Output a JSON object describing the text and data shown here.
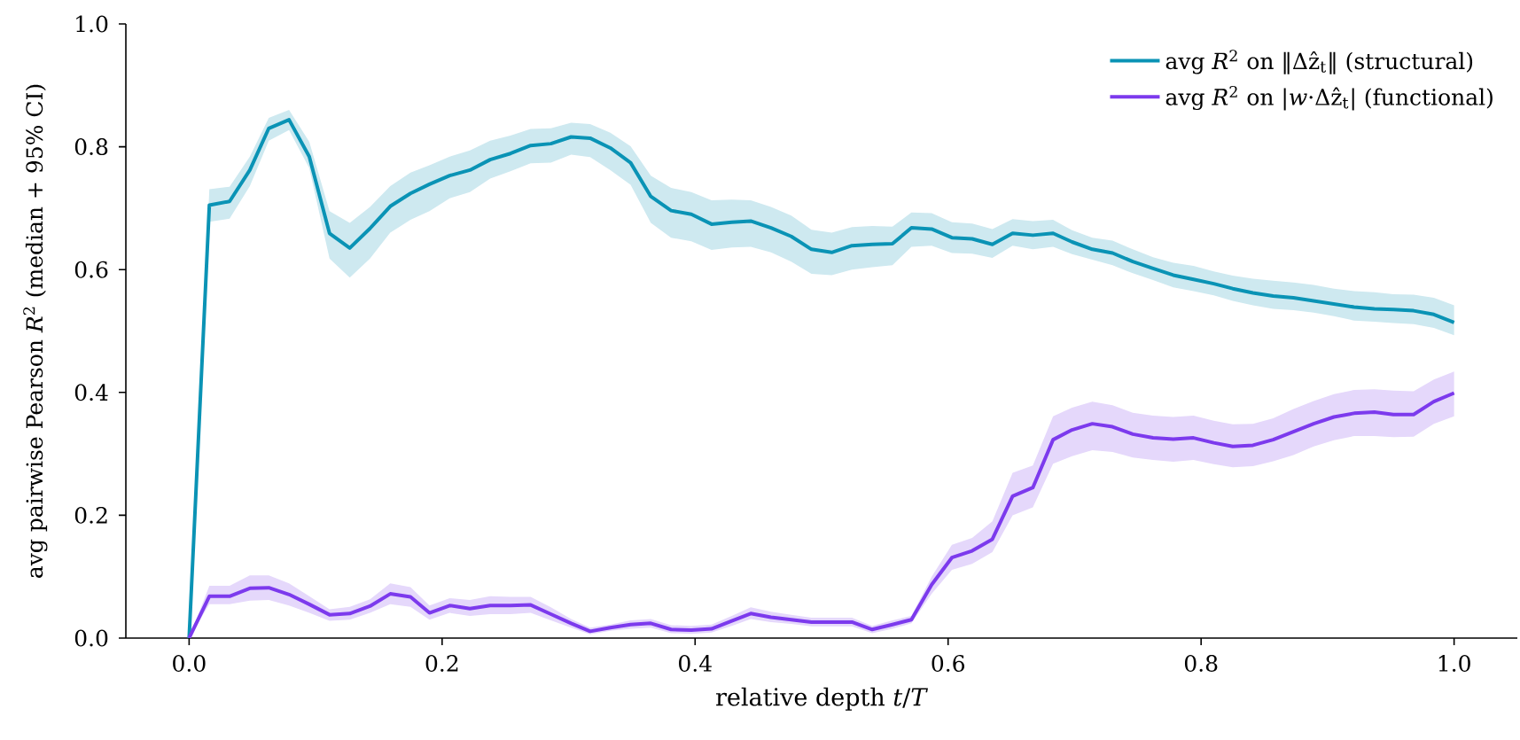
{
  "chart_data": {
    "type": "line",
    "xlabel": "relative depth *t*/*T*",
    "ylabel": "avg pairwise Pearson *R*$^{2}$ (median + 95% CI)",
    "legend": "top right",
    "xlim": [
      -0.05,
      1.05
    ],
    "ylim": [
      0,
      1
    ],
    "xticks": [
      {
        "value": 0,
        "label": "0.0"
      },
      0.2,
      0.4,
      0.6,
      0.8,
      {
        "value": 1,
        "label": "1.0"
      }
    ],
    "yticks": [
      {
        "value": 0,
        "label": "0.0"
      },
      0.2,
      0.4,
      0.6,
      0.8,
      {
        "value": 1,
        "label": "1.0"
      }
    ],
    "x": [
      0,
      0.016,
      0.032,
      0.048,
      0.063,
      0.079,
      0.095,
      0.111,
      0.127,
      0.143,
      0.159,
      0.175,
      0.19,
      0.206,
      0.222,
      0.238,
      0.254,
      0.27,
      0.286,
      0.302,
      0.317,
      0.333,
      0.349,
      0.365,
      0.381,
      0.397,
      0.413,
      0.429,
      0.444,
      0.46,
      0.476,
      0.492,
      0.508,
      0.524,
      0.54,
      0.556,
      0.571,
      0.587,
      0.603,
      0.619,
      0.635,
      0.651,
      0.667,
      0.683,
      0.698,
      0.714,
      0.73,
      0.746,
      0.762,
      0.778,
      0.794,
      0.81,
      0.825,
      0.841,
      0.857,
      0.873,
      0.889,
      0.905,
      0.921,
      0.937,
      0.952,
      0.968,
      0.984,
      1
    ],
    "series": [
      {
        "name": "avg *R*$^{2}$ on ‖Δẑ$_{t}$‖ (structural)",
        "color": "#0a93b5",
        "values": [
          0,
          0.705,
          0.711,
          0.762,
          0.83,
          0.844,
          0.784,
          0.659,
          0.635,
          0.667,
          0.703,
          0.724,
          0.739,
          0.753,
          0.762,
          0.779,
          0.789,
          0.802,
          0.805,
          0.816,
          0.814,
          0.798,
          0.774,
          0.719,
          0.696,
          0.69,
          0.674,
          0.677,
          0.679,
          0.668,
          0.654,
          0.633,
          0.628,
          0.639,
          0.641,
          0.642,
          0.668,
          0.666,
          0.652,
          0.65,
          0.641,
          0.659,
          0.656,
          0.659,
          0.645,
          0.633,
          0.627,
          0.613,
          0.602,
          0.591,
          0.584,
          0.577,
          0.569,
          0.562,
          0.557,
          0.554,
          0.549,
          0.544,
          0.539,
          0.536,
          0.535,
          0.533,
          0.527,
          0.514
        ],
        "upper": [
          0,
          0.731,
          0.735,
          0.784,
          0.847,
          0.86,
          0.808,
          0.695,
          0.676,
          0.702,
          0.736,
          0.758,
          0.77,
          0.784,
          0.794,
          0.81,
          0.818,
          0.829,
          0.83,
          0.839,
          0.837,
          0.823,
          0.801,
          0.753,
          0.733,
          0.726,
          0.713,
          0.714,
          0.713,
          0.702,
          0.688,
          0.665,
          0.66,
          0.669,
          0.671,
          0.67,
          0.693,
          0.692,
          0.677,
          0.675,
          0.666,
          0.682,
          0.679,
          0.681,
          0.664,
          0.652,
          0.647,
          0.633,
          0.62,
          0.611,
          0.606,
          0.597,
          0.59,
          0.585,
          0.582,
          0.579,
          0.575,
          0.569,
          0.565,
          0.563,
          0.56,
          0.559,
          0.554,
          0.542
        ],
        "lower": [
          0,
          0.678,
          0.683,
          0.736,
          0.81,
          0.827,
          0.765,
          0.618,
          0.587,
          0.618,
          0.66,
          0.681,
          0.695,
          0.716,
          0.726,
          0.748,
          0.76,
          0.773,
          0.774,
          0.787,
          0.783,
          0.762,
          0.738,
          0.676,
          0.652,
          0.646,
          0.632,
          0.636,
          0.637,
          0.628,
          0.613,
          0.593,
          0.591,
          0.6,
          0.604,
          0.607,
          0.637,
          0.639,
          0.627,
          0.626,
          0.619,
          0.639,
          0.633,
          0.637,
          0.625,
          0.616,
          0.607,
          0.594,
          0.583,
          0.571,
          0.565,
          0.558,
          0.549,
          0.542,
          0.536,
          0.534,
          0.53,
          0.524,
          0.517,
          0.515,
          0.513,
          0.511,
          0.505,
          0.493
        ]
      },
      {
        "name": "avg *R*$^{2}$ on |*w*·Δẑ$_{t}$| (functional)",
        "color": "#7c3aed",
        "values": [
          0,
          0.068,
          0.068,
          0.081,
          0.082,
          0.071,
          0.055,
          0.038,
          0.04,
          0.052,
          0.072,
          0.067,
          0.041,
          0.053,
          0.048,
          0.053,
          0.053,
          0.054,
          0.039,
          0.024,
          0.011,
          0.017,
          0.022,
          0.024,
          0.014,
          0.013,
          0.015,
          0.028,
          0.04,
          0.034,
          0.03,
          0.026,
          0.026,
          0.026,
          0.014,
          0.022,
          0.03,
          0.087,
          0.131,
          0.142,
          0.161,
          0.231,
          0.245,
          0.323,
          0.339,
          0.349,
          0.344,
          0.332,
          0.326,
          0.324,
          0.326,
          0.318,
          0.312,
          0.314,
          0.323,
          0.336,
          0.349,
          0.36,
          0.366,
          0.368,
          0.364,
          0.364,
          0.385,
          0.399
        ],
        "upper": [
          0,
          0.085,
          0.085,
          0.102,
          0.102,
          0.089,
          0.068,
          0.047,
          0.051,
          0.063,
          0.089,
          0.083,
          0.053,
          0.065,
          0.062,
          0.068,
          0.067,
          0.067,
          0.05,
          0.031,
          0.017,
          0.022,
          0.029,
          0.031,
          0.021,
          0.02,
          0.022,
          0.036,
          0.05,
          0.043,
          0.038,
          0.033,
          0.033,
          0.033,
          0.02,
          0.029,
          0.036,
          0.1,
          0.152,
          0.163,
          0.19,
          0.269,
          0.281,
          0.361,
          0.375,
          0.385,
          0.379,
          0.367,
          0.362,
          0.36,
          0.362,
          0.354,
          0.348,
          0.349,
          0.358,
          0.373,
          0.386,
          0.397,
          0.404,
          0.405,
          0.403,
          0.402,
          0.421,
          0.434
        ],
        "lower": [
          0,
          0.055,
          0.055,
          0.061,
          0.062,
          0.053,
          0.041,
          0.028,
          0.03,
          0.041,
          0.055,
          0.051,
          0.03,
          0.041,
          0.036,
          0.039,
          0.039,
          0.041,
          0.029,
          0.017,
          0.006,
          0.012,
          0.015,
          0.017,
          0.008,
          0.007,
          0.009,
          0.02,
          0.031,
          0.026,
          0.023,
          0.019,
          0.019,
          0.019,
          0.008,
          0.015,
          0.024,
          0.072,
          0.111,
          0.121,
          0.14,
          0.2,
          0.213,
          0.284,
          0.296,
          0.306,
          0.303,
          0.294,
          0.29,
          0.287,
          0.29,
          0.283,
          0.278,
          0.28,
          0.288,
          0.298,
          0.312,
          0.322,
          0.329,
          0.329,
          0.327,
          0.328,
          0.349,
          0.361
        ]
      }
    ]
  }
}
